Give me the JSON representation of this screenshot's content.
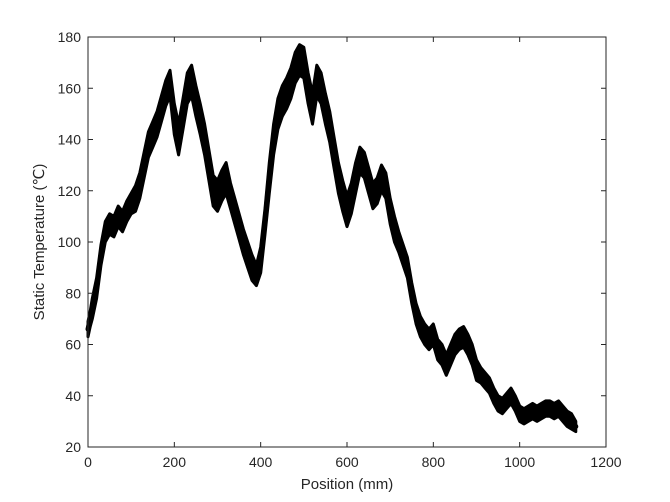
{
  "chart_data": {
    "type": "line",
    "title": "",
    "xlabel": "Position (mm)",
    "ylabel": "Static Temperature (℃)",
    "xlim": [
      0,
      1200
    ],
    "ylim": [
      20,
      180
    ],
    "xticks": [
      "0",
      "200",
      "400",
      "600",
      "800",
      "1000",
      "1200"
    ],
    "yticks": [
      "20",
      "40",
      "60",
      "80",
      "100",
      "120",
      "140",
      "160",
      "180"
    ],
    "grid": false,
    "legend": "none",
    "line_color": "#000000",
    "series": [
      {
        "x": [
          0,
          5,
          10,
          20,
          30,
          40,
          50,
          60,
          70,
          80,
          90,
          100,
          110,
          120,
          130,
          140,
          150,
          160,
          170,
          180,
          190,
          200,
          210,
          220,
          230,
          240,
          250,
          260,
          270,
          280,
          290,
          300,
          310,
          320,
          330,
          340,
          350,
          360,
          370,
          380,
          390,
          400,
          410,
          420,
          430,
          440,
          450,
          460,
          470,
          480,
          490,
          500,
          510,
          520,
          530,
          540,
          550,
          560,
          570,
          580,
          590,
          600,
          610,
          620,
          630,
          640,
          650,
          660,
          670,
          680,
          690,
          700,
          710,
          720,
          730,
          740,
          750,
          760,
          770,
          780,
          790,
          800,
          810,
          820,
          830,
          840,
          850,
          860,
          870,
          880,
          890,
          900,
          910,
          920,
          930,
          940,
          950,
          960,
          970,
          980,
          990,
          1000,
          1010,
          1020,
          1030,
          1040,
          1050,
          1060,
          1070,
          1080,
          1090,
          1100,
          1110,
          1120,
          1130
        ],
        "y": [
          66,
          70,
          74,
          82,
          95,
          104,
          107,
          106,
          110,
          108,
          112,
          115,
          117,
          122,
          130,
          138,
          142,
          146,
          152,
          158,
          162,
          148,
          140,
          150,
          160,
          163,
          155,
          148,
          140,
          130,
          120,
          118,
          122,
          125,
          118,
          112,
          106,
          100,
          95,
          90,
          87,
          93,
          108,
          125,
          140,
          150,
          155,
          158,
          162,
          168,
          171,
          170,
          160,
          152,
          163,
          160,
          152,
          145,
          135,
          125,
          118,
          112,
          117,
          125,
          132,
          130,
          124,
          118,
          120,
          125,
          122,
          112,
          105,
          100,
          95,
          90,
          80,
          72,
          67,
          64,
          62,
          64,
          58,
          56,
          52,
          56,
          60,
          62,
          63,
          60,
          56,
          50,
          48,
          46,
          44,
          40,
          37,
          36,
          38,
          40,
          37,
          33,
          32,
          33,
          34,
          33,
          34,
          35,
          35,
          34,
          35,
          33,
          31,
          30,
          28
        ],
        "band": [
          3,
          3,
          4,
          4,
          4,
          4,
          4,
          4,
          4,
          4,
          4,
          4,
          5,
          5,
          5,
          5,
          5,
          5,
          5,
          5,
          5,
          6,
          6,
          6,
          6,
          6,
          6,
          6,
          6,
          6,
          6,
          6,
          6,
          6,
          5,
          5,
          5,
          5,
          5,
          5,
          4,
          5,
          5,
          6,
          6,
          6,
          6,
          6,
          6,
          6,
          6,
          6,
          6,
          6,
          6,
          6,
          6,
          6,
          6,
          6,
          6,
          6,
          6,
          6,
          5,
          5,
          5,
          5,
          5,
          5,
          5,
          5,
          5,
          4,
          4,
          4,
          4,
          4,
          4,
          4,
          4,
          4,
          4,
          4,
          4,
          4,
          4,
          4,
          4,
          4,
          4,
          4,
          3,
          3,
          3,
          3,
          3,
          3,
          3,
          3,
          3,
          3,
          3,
          3,
          3,
          3,
          3,
          3,
          3,
          3,
          3,
          3,
          3,
          3,
          2
        ]
      }
    ]
  }
}
